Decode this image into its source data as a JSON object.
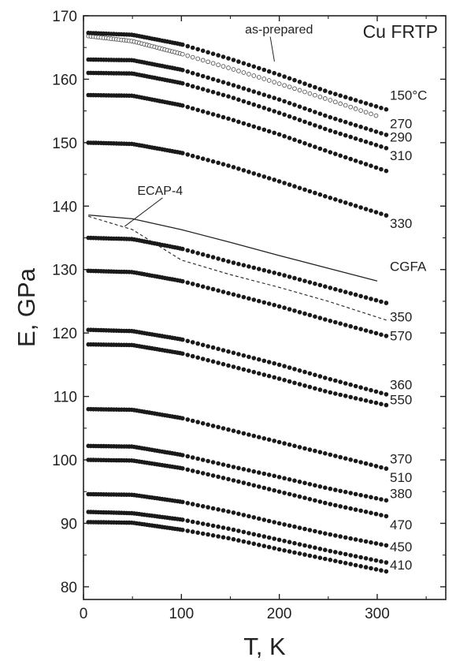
{
  "chart_data": {
    "type": "scatter",
    "title": "Cu FRTP",
    "xlabel": "T, K",
    "ylabel": "E, GPa",
    "xlim": [
      0,
      370
    ],
    "ylim": [
      78,
      170
    ],
    "xticks": [
      0,
      100,
      200,
      300
    ],
    "yticks": [
      80,
      90,
      100,
      110,
      120,
      130,
      140,
      150,
      160,
      170
    ],
    "grid": false,
    "series": [
      {
        "name": "as-prepared",
        "marker": "open-circle",
        "points": [
          [
            5,
            166.8
          ],
          [
            50,
            166.0
          ],
          [
            100,
            164.0
          ],
          [
            150,
            161.7
          ],
          [
            200,
            159.3
          ],
          [
            250,
            156.8
          ],
          [
            300,
            154.2
          ]
        ]
      },
      {
        "name": "150°C",
        "marker": "filled-circle",
        "points": [
          [
            5,
            167.3
          ],
          [
            50,
            167.0
          ],
          [
            100,
            165.5
          ],
          [
            150,
            163.2
          ],
          [
            200,
            160.7
          ],
          [
            250,
            158.0
          ],
          [
            310,
            155.2
          ]
        ]
      },
      {
        "name": "270",
        "marker": "filled-circle",
        "points": [
          [
            5,
            163.1
          ],
          [
            50,
            163.0
          ],
          [
            100,
            161.5
          ],
          [
            150,
            159.2
          ],
          [
            200,
            156.8
          ],
          [
            250,
            154.1
          ],
          [
            310,
            151.2
          ]
        ]
      },
      {
        "name": "290",
        "marker": "filled-circle",
        "points": [
          [
            5,
            161.0
          ],
          [
            50,
            160.9
          ],
          [
            100,
            159.4
          ],
          [
            150,
            157.2
          ],
          [
            200,
            154.7
          ],
          [
            250,
            152.0
          ],
          [
            310,
            149.1
          ]
        ]
      },
      {
        "name": "310",
        "marker": "filled-circle",
        "points": [
          [
            5,
            157.5
          ],
          [
            50,
            157.4
          ],
          [
            100,
            155.9
          ],
          [
            150,
            153.7
          ],
          [
            200,
            151.3
          ],
          [
            250,
            148.6
          ],
          [
            310,
            145.5
          ]
        ]
      },
      {
        "name": "330",
        "marker": "filled-circle",
        "points": [
          [
            5,
            150.0
          ],
          [
            50,
            149.8
          ],
          [
            100,
            148.4
          ],
          [
            150,
            146.3
          ],
          [
            200,
            143.9
          ],
          [
            250,
            141.4
          ],
          [
            310,
            138.5
          ]
        ]
      },
      {
        "name": "ECAP-4",
        "marker": "dashed-line",
        "points": [
          [
            5,
            138.4
          ],
          [
            50,
            136.3
          ],
          [
            100,
            131.5
          ],
          [
            150,
            129.2
          ],
          [
            200,
            127.2
          ],
          [
            250,
            125.0
          ],
          [
            310,
            122.0
          ]
        ]
      },
      {
        "name": "CGFA",
        "marker": "solid-line",
        "points": [
          [
            5,
            138.6
          ],
          [
            50,
            138.0
          ],
          [
            100,
            136.3
          ],
          [
            150,
            134.3
          ],
          [
            200,
            132.2
          ],
          [
            250,
            130.2
          ],
          [
            300,
            128.2
          ]
        ]
      },
      {
        "name": "350",
        "marker": "filled-circle",
        "points": [
          [
            5,
            135.0
          ],
          [
            50,
            134.8
          ],
          [
            100,
            133.3
          ],
          [
            150,
            131.2
          ],
          [
            200,
            129.3
          ],
          [
            250,
            127.2
          ],
          [
            310,
            124.7
          ]
        ]
      },
      {
        "name": "570",
        "marker": "filled-circle",
        "points": [
          [
            5,
            129.8
          ],
          [
            50,
            129.6
          ],
          [
            100,
            128.2
          ],
          [
            150,
            126.2
          ],
          [
            200,
            124.2
          ],
          [
            250,
            122.0
          ],
          [
            310,
            119.5
          ]
        ]
      },
      {
        "name": "360",
        "marker": "filled-circle",
        "points": [
          [
            5,
            120.5
          ],
          [
            50,
            120.3
          ],
          [
            100,
            119.0
          ],
          [
            150,
            117.0
          ],
          [
            200,
            115.0
          ],
          [
            250,
            112.8
          ],
          [
            310,
            110.3
          ]
        ]
      },
      {
        "name": "550",
        "marker": "filled-circle",
        "points": [
          [
            5,
            118.2
          ],
          [
            50,
            118.1
          ],
          [
            100,
            116.8
          ],
          [
            150,
            114.8
          ],
          [
            200,
            112.8
          ],
          [
            250,
            110.7
          ],
          [
            310,
            108.6
          ]
        ]
      },
      {
        "name": "370",
        "marker": "filled-circle",
        "points": [
          [
            5,
            108.0
          ],
          [
            50,
            107.9
          ],
          [
            100,
            106.6
          ],
          [
            150,
            104.7
          ],
          [
            200,
            102.8
          ],
          [
            250,
            100.9
          ],
          [
            310,
            98.6
          ]
        ]
      },
      {
        "name": "510",
        "marker": "filled-circle",
        "points": [
          [
            5,
            102.2
          ],
          [
            50,
            102.1
          ],
          [
            100,
            100.8
          ],
          [
            150,
            99.0
          ],
          [
            200,
            97.3
          ],
          [
            250,
            95.5
          ],
          [
            310,
            93.6
          ]
        ]
      },
      {
        "name": "380",
        "marker": "filled-circle",
        "points": [
          [
            5,
            100.0
          ],
          [
            50,
            99.9
          ],
          [
            100,
            98.7
          ],
          [
            150,
            96.9
          ],
          [
            200,
            95.0
          ],
          [
            250,
            93.1
          ],
          [
            310,
            91.1
          ]
        ]
      },
      {
        "name": "470",
        "marker": "filled-circle",
        "points": [
          [
            5,
            94.6
          ],
          [
            50,
            94.5
          ],
          [
            100,
            93.4
          ],
          [
            150,
            91.8
          ],
          [
            200,
            90.0
          ],
          [
            250,
            88.3
          ],
          [
            310,
            86.5
          ]
        ]
      },
      {
        "name": "450",
        "marker": "filled-circle",
        "points": [
          [
            5,
            91.8
          ],
          [
            50,
            91.6
          ],
          [
            100,
            90.6
          ],
          [
            150,
            89.1
          ],
          [
            200,
            87.4
          ],
          [
            250,
            85.7
          ],
          [
            310,
            83.8
          ]
        ]
      },
      {
        "name": "410",
        "marker": "filled-circle",
        "points": [
          [
            5,
            90.2
          ],
          [
            50,
            90.1
          ],
          [
            100,
            89.0
          ],
          [
            150,
            87.6
          ],
          [
            200,
            85.9
          ],
          [
            250,
            84.3
          ],
          [
            310,
            82.4
          ]
        ]
      }
    ],
    "series_labels": [
      {
        "text": "150°C",
        "y": 157.5
      },
      {
        "text": "270",
        "y": 153.0
      },
      {
        "text": "290",
        "y": 150.9
      },
      {
        "text": "310",
        "y": 148.0
      },
      {
        "text": "330",
        "y": 137.3
      },
      {
        "text": "CGFA",
        "y": 130.5
      },
      {
        "text": "350",
        "y": 122.6
      },
      {
        "text": "570",
        "y": 119.6
      },
      {
        "text": "360",
        "y": 111.9
      },
      {
        "text": "550",
        "y": 109.5
      },
      {
        "text": "370",
        "y": 100.2
      },
      {
        "text": "510",
        "y": 97.3
      },
      {
        "text": "380",
        "y": 94.7
      },
      {
        "text": "470",
        "y": 89.8
      },
      {
        "text": "450",
        "y": 86.3
      },
      {
        "text": "410",
        "y": 83.5
      }
    ],
    "annotations": [
      {
        "text": "as-prepared",
        "x": 165,
        "y": 167.2,
        "arrow_to": [
          195,
          162.8
        ]
      },
      {
        "text": "ECAP-4",
        "x": 55,
        "y": 141.8,
        "arrow_to": [
          42,
          136.8
        ]
      }
    ]
  }
}
